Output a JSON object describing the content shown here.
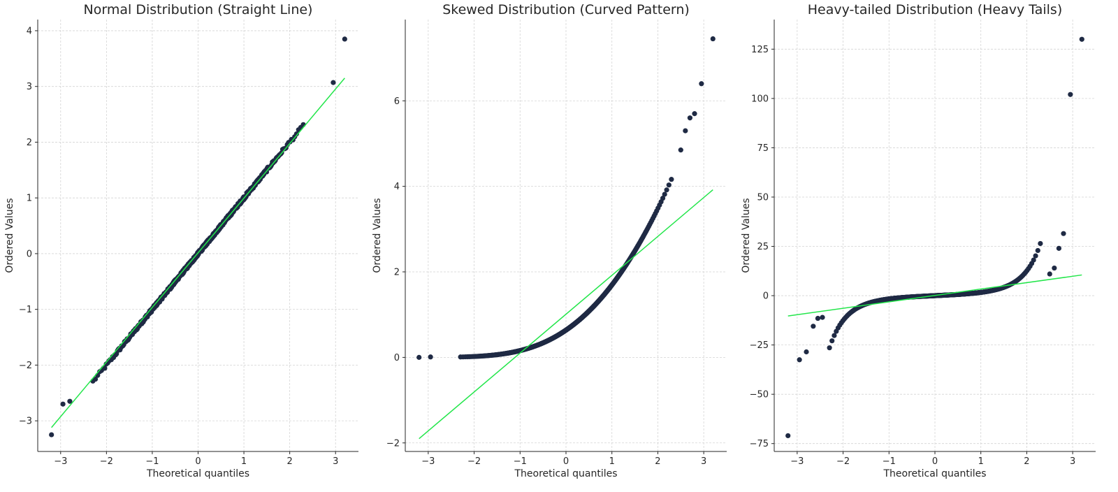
{
  "chart_data": [
    {
      "type": "scatter",
      "title": "Normal Distribution (Straight Line)",
      "xlabel": "Theoretical quantiles",
      "ylabel": "Ordered Values",
      "xlim": [
        -3.5,
        3.5
      ],
      "ylim": [
        -3.55,
        4.2
      ],
      "xticks": [
        -3,
        -2,
        -1,
        0,
        1,
        2,
        3
      ],
      "yticks": [
        -3,
        -2,
        -1,
        0,
        1,
        2,
        3,
        4
      ],
      "grid": true,
      "distribution": "normal",
      "fit_line": {
        "x": [
          -3.2,
          3.2
        ],
        "y": [
          -3.12,
          3.15
        ],
        "color": "#22e64a"
      },
      "highlighted_points": [
        {
          "x": -3.2,
          "y": -3.25
        },
        {
          "x": -2.95,
          "y": -2.7
        },
        {
          "x": -2.8,
          "y": -2.65
        },
        {
          "x": 2.95,
          "y": 3.07
        },
        {
          "x": 3.2,
          "y": 3.85
        }
      ]
    },
    {
      "type": "scatter",
      "title": "Skewed Distribution (Curved Pattern)",
      "xlabel": "Theoretical quantiles",
      "ylabel": "Ordered Values",
      "xlim": [
        -3.5,
        3.5
      ],
      "ylim": [
        -2.2,
        7.9
      ],
      "xticks": [
        -3,
        -2,
        -1,
        0,
        1,
        2,
        3
      ],
      "yticks": [
        -2,
        0,
        2,
        4,
        6
      ],
      "grid": true,
      "distribution": "exponential",
      "fit_line": {
        "x": [
          -3.2,
          3.2
        ],
        "y": [
          -1.9,
          3.92
        ],
        "color": "#22e64a"
      },
      "highlighted_points": [
        {
          "x": -3.2,
          "y": 0.0
        },
        {
          "x": -2.95,
          "y": 0.01
        },
        {
          "x": 2.5,
          "y": 4.85
        },
        {
          "x": 2.6,
          "y": 5.3
        },
        {
          "x": 2.7,
          "y": 5.6
        },
        {
          "x": 2.8,
          "y": 5.7
        },
        {
          "x": 2.95,
          "y": 6.4
        },
        {
          "x": 3.2,
          "y": 7.45
        }
      ]
    },
    {
      "type": "scatter",
      "title": "Heavy-tailed Distribution (Heavy Tails)",
      "xlabel": "Theoretical quantiles",
      "ylabel": "Ordered Values",
      "xlim": [
        -3.5,
        3.5
      ],
      "ylim": [
        -79,
        140
      ],
      "xticks": [
        -3,
        -2,
        -1,
        0,
        1,
        2,
        3
      ],
      "yticks": [
        -75,
        -50,
        -25,
        0,
        25,
        50,
        75,
        100,
        125
      ],
      "grid": true,
      "distribution": "cauchy",
      "fit_line": {
        "x": [
          -3.2,
          3.2
        ],
        "y": [
          -10.3,
          10.5
        ],
        "color": "#22e64a"
      },
      "highlighted_points": [
        {
          "x": -3.2,
          "y": -71
        },
        {
          "x": -2.95,
          "y": -32.5
        },
        {
          "x": -2.8,
          "y": -28.5
        },
        {
          "x": -2.65,
          "y": -15.5
        },
        {
          "x": -2.55,
          "y": -11.5
        },
        {
          "x": -2.45,
          "y": -11
        },
        {
          "x": 2.5,
          "y": 11
        },
        {
          "x": 2.6,
          "y": 14
        },
        {
          "x": 2.7,
          "y": 24
        },
        {
          "x": 2.8,
          "y": 31.5
        },
        {
          "x": 2.95,
          "y": 102
        },
        {
          "x": 3.2,
          "y": 130
        }
      ]
    }
  ]
}
